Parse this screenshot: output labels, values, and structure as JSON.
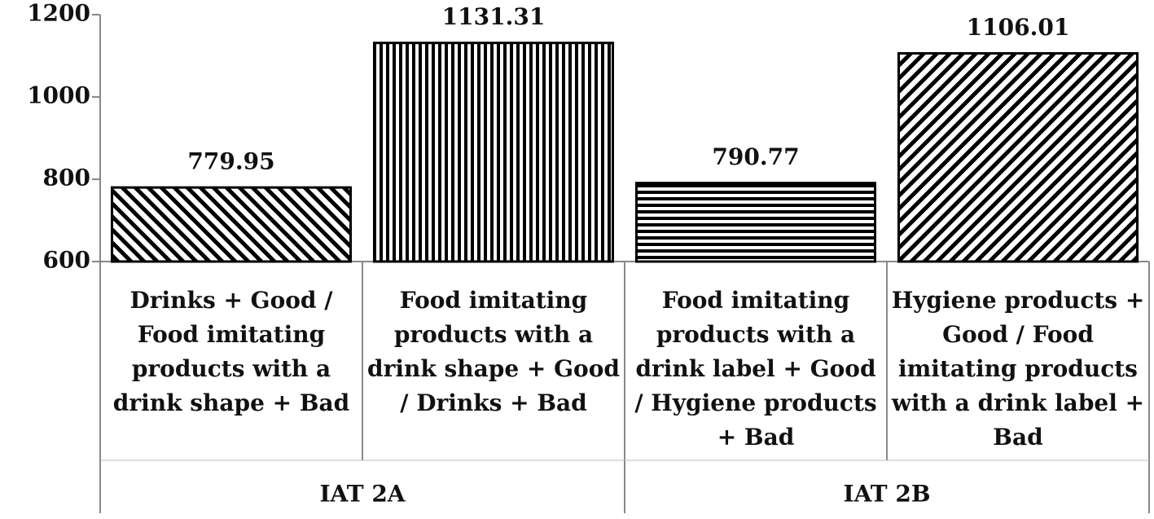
{
  "chart_data": {
    "type": "bar",
    "categories": [
      "Drinks + Good / Food imitating products with a drink shape + Bad",
      "Food imitating products with a drink shape + Good / Drinks + Bad",
      "Food imitating products with a drink label + Good / Hygiene products + Bad",
      "Hygiene products + Good / Food imitating products with a drink label + Bad"
    ],
    "groups": [
      "IAT 2A",
      "IAT 2B"
    ],
    "values": [
      779.95,
      1131.31,
      790.77,
      1106.01
    ],
    "patterns": [
      "diagonal-down",
      "vertical",
      "horizontal",
      "diagonal-up"
    ],
    "color": "#000000",
    "ylim": [
      600,
      1200
    ],
    "yticks": [
      600,
      800,
      1000,
      1200
    ],
    "grid": false
  }
}
